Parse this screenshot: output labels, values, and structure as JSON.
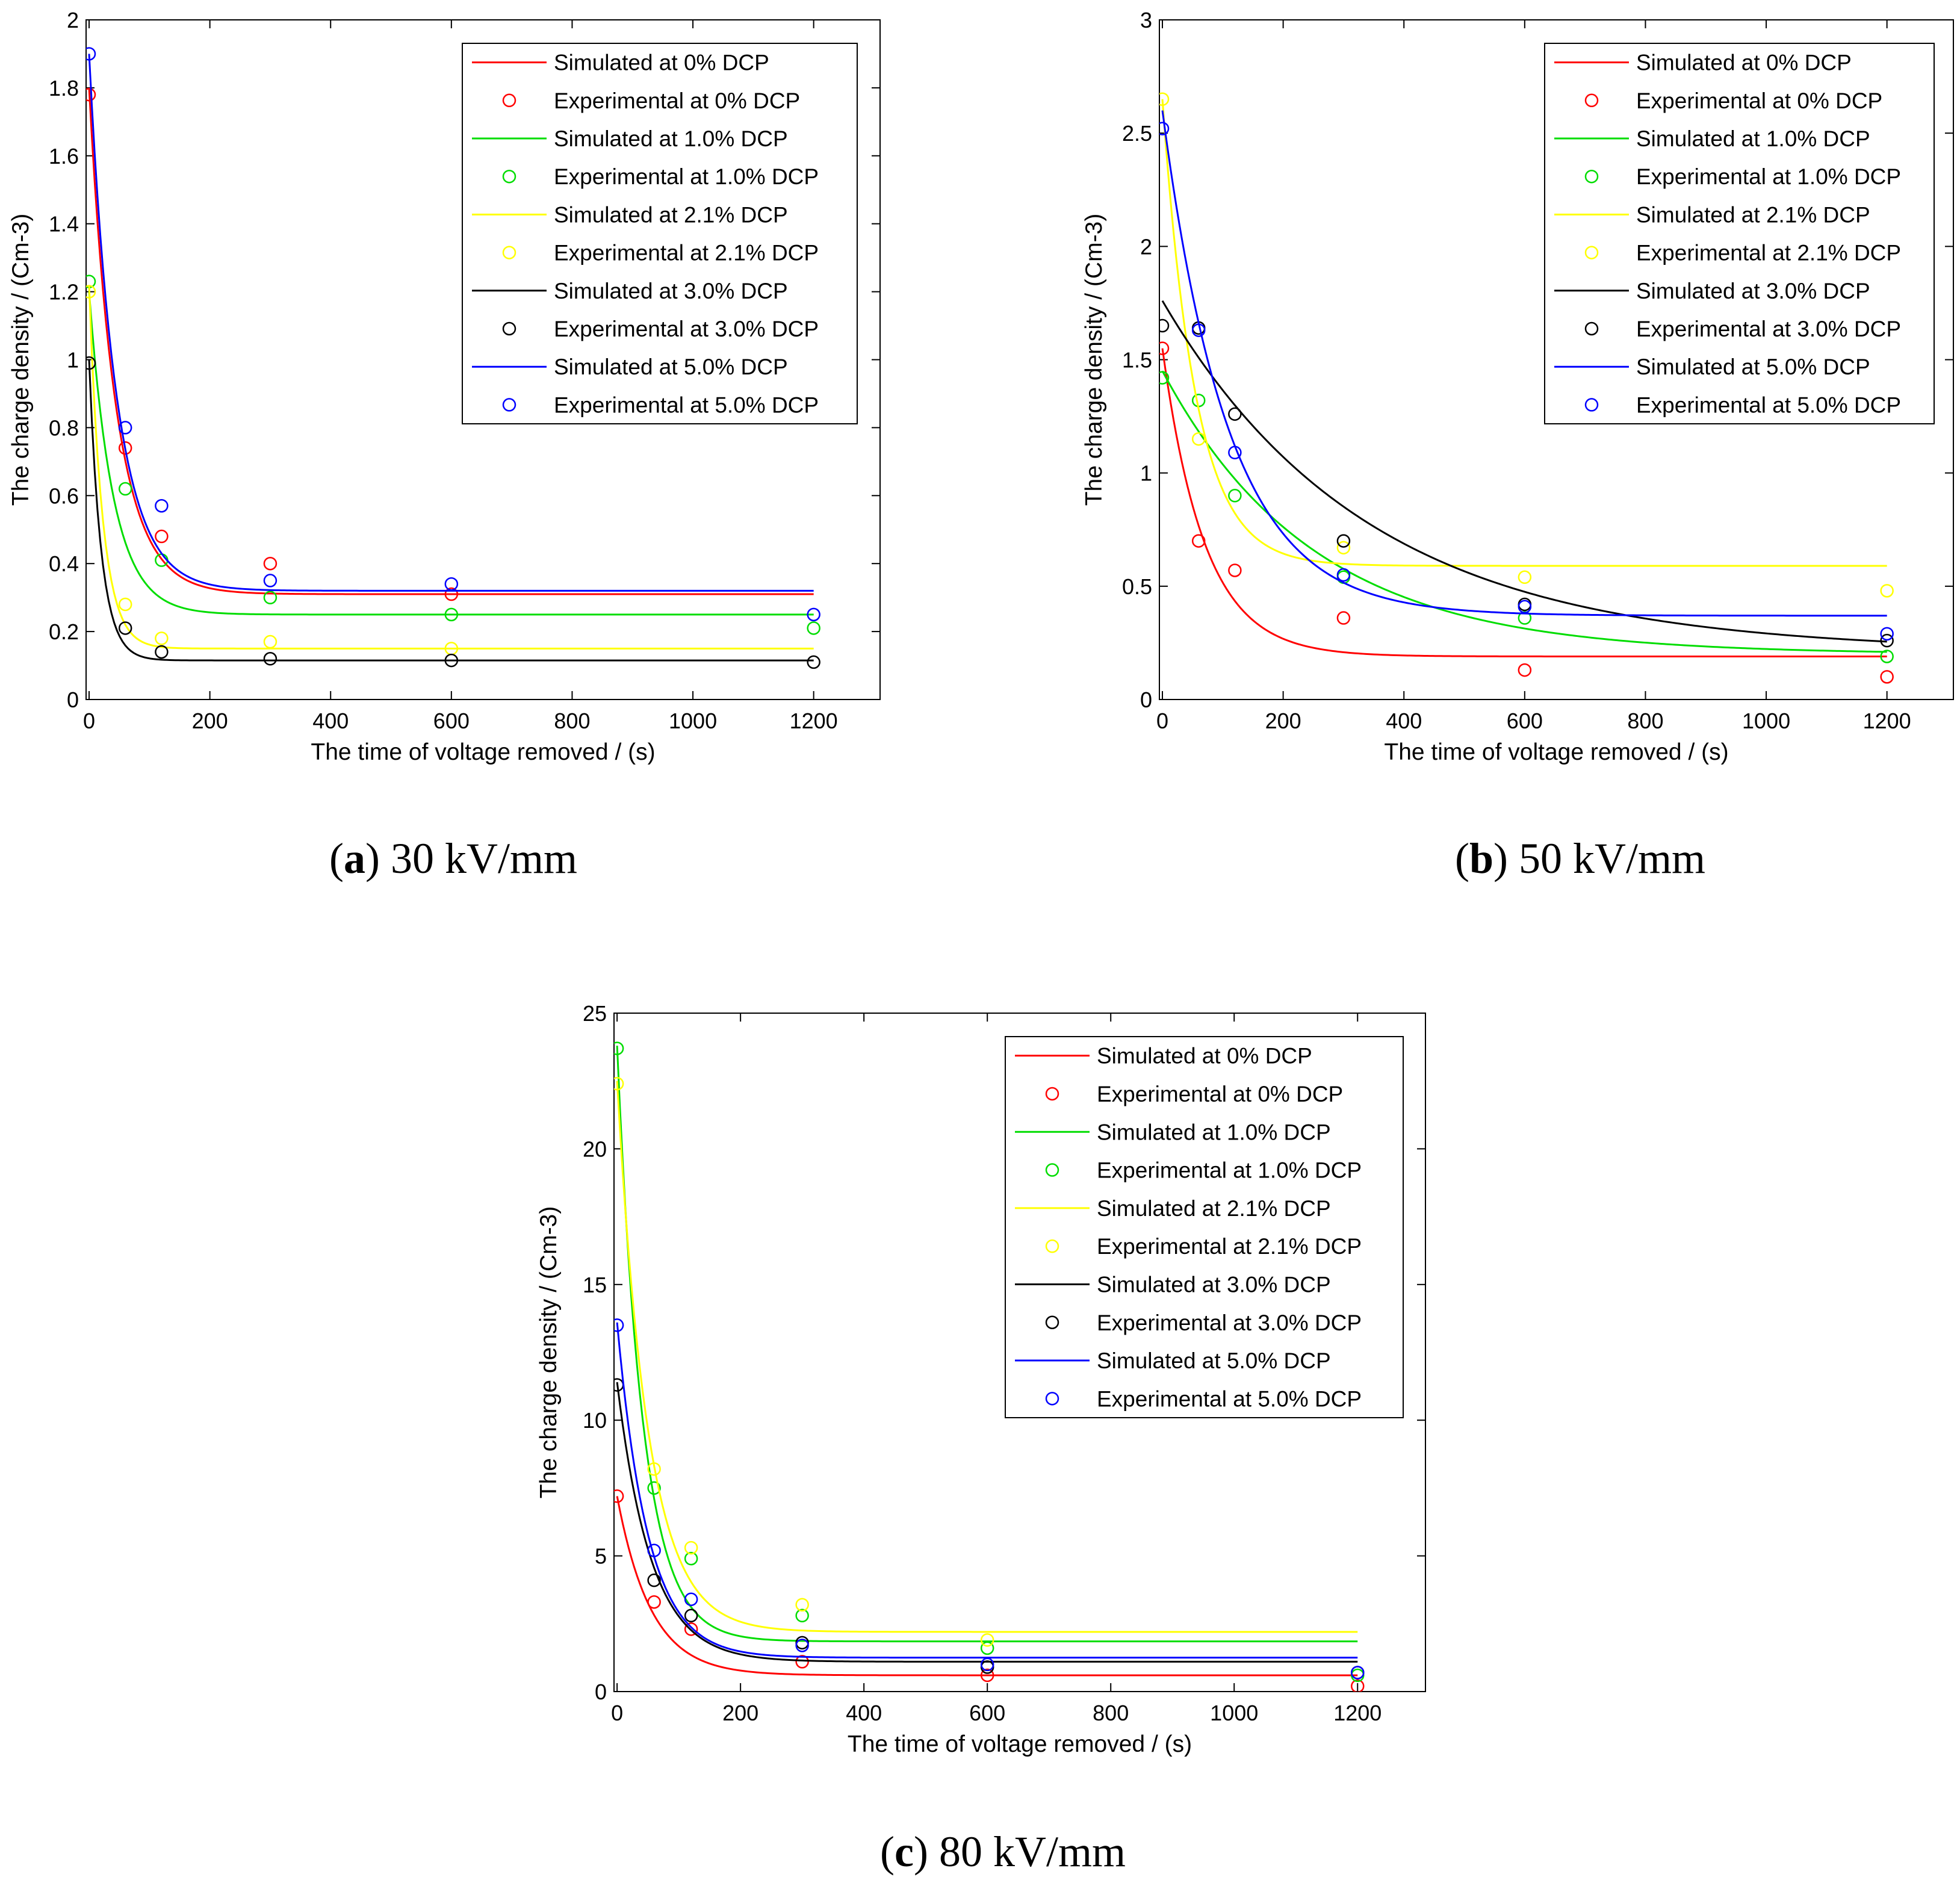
{
  "figure": {
    "series_meta": [
      {
        "key": "0",
        "color": "#ff0000",
        "sim_label": "Simulated at 0% DCP",
        "exp_label": "Experimental at 0% DCP"
      },
      {
        "key": "1.0",
        "color": "#00dd00",
        "sim_label": "Simulated at 1.0% DCP",
        "exp_label": "Experimental at 1.0% DCP"
      },
      {
        "key": "2.1",
        "color": "#ffff00",
        "sim_label": "Simulated at 2.1% DCP",
        "exp_label": "Experimental at 2.1% DCP"
      },
      {
        "key": "3.0",
        "color": "#000000",
        "sim_label": "Simulated at 3.0% DCP",
        "exp_label": "Experimental at 3.0% DCP"
      },
      {
        "key": "5.0",
        "color": "#0000ff",
        "sim_label": "Simulated at 5.0% DCP",
        "exp_label": "Experimental at 5.0% DCP"
      }
    ]
  },
  "chart_data": [
    {
      "id": "a",
      "type": "line",
      "caption_letter": "a",
      "caption_text": "30 kV/mm",
      "xlabel": "The time of voltage removed / (s)",
      "ylabel": "The charge density / (Cm-3)",
      "xlim": [
        -5,
        1310
      ],
      "ylim": [
        0,
        2
      ],
      "xticks": [
        0,
        200,
        400,
        600,
        800,
        1000,
        1200
      ],
      "yticks": [
        0,
        0.2,
        0.4,
        0.6,
        0.8,
        1,
        1.2,
        1.4,
        1.6,
        1.8,
        2
      ],
      "legend_position": "top-right",
      "experimental_x": [
        0,
        60,
        120,
        300,
        600,
        1200
      ],
      "series": [
        {
          "name": "0% DCP",
          "sim": {
            "y0": 1.8,
            "yinf": 0.31,
            "tau": 45
          },
          "exp": [
            1.78,
            0.74,
            0.48,
            0.4,
            0.31,
            null
          ]
        },
        {
          "name": "1.0% DCP",
          "sim": {
            "y0": 1.2,
            "yinf": 0.25,
            "tau": 40
          },
          "exp": [
            1.23,
            0.62,
            0.41,
            0.3,
            0.25,
            0.21
          ]
        },
        {
          "name": "2.1% DCP",
          "sim": {
            "y0": 1.22,
            "yinf": 0.15,
            "tau": 22
          },
          "exp": [
            1.2,
            0.28,
            0.18,
            0.17,
            0.15,
            null
          ]
        },
        {
          "name": "3.0% DCP",
          "sim": {
            "y0": 1.0,
            "yinf": 0.115,
            "tau": 20
          },
          "exp": [
            0.99,
            0.21,
            0.14,
            0.12,
            0.115,
            0.11
          ]
        },
        {
          "name": "5.0% DCP",
          "sim": {
            "y0": 1.9,
            "yinf": 0.32,
            "tau": 45
          },
          "exp": [
            1.9,
            0.8,
            0.57,
            0.35,
            0.34,
            0.25
          ]
        }
      ]
    },
    {
      "id": "b",
      "type": "line",
      "caption_letter": "b",
      "caption_text": "50 kV/mm",
      "xlabel": "The time of voltage removed / (s)",
      "ylabel": "The charge density / (Cm-3)",
      "xlim": [
        -5,
        1310
      ],
      "ylim": [
        0,
        3
      ],
      "xticks": [
        0,
        200,
        400,
        600,
        800,
        1000,
        1200
      ],
      "yticks": [
        0,
        0.5,
        1,
        1.5,
        2,
        2.5,
        3
      ],
      "legend_position": "top-right",
      "experimental_x": [
        0,
        60,
        120,
        300,
        600,
        1200
      ],
      "series": [
        {
          "name": "0% DCP",
          "sim": {
            "y0": 1.55,
            "yinf": 0.19,
            "tau": 70
          },
          "exp": [
            1.55,
            0.7,
            0.57,
            0.36,
            0.13,
            0.1
          ]
        },
        {
          "name": "1.0% DCP",
          "sim": {
            "y0": 1.45,
            "yinf": 0.2,
            "tau": 250
          },
          "exp": [
            1.42,
            1.32,
            0.9,
            0.54,
            0.36,
            0.19
          ]
        },
        {
          "name": "2.1% DCP",
          "sim": {
            "y0": 2.65,
            "yinf": 0.59,
            "tau": 55
          },
          "exp": [
            2.65,
            1.15,
            null,
            0.67,
            0.54,
            0.48
          ]
        },
        {
          "name": "3.0% DCP",
          "sim": {
            "y0": 1.76,
            "yinf": 0.21,
            "tau": 340
          },
          "exp": [
            1.65,
            1.64,
            1.26,
            0.7,
            0.42,
            0.26
          ]
        },
        {
          "name": "5.0% DCP",
          "sim": {
            "y0": 2.6,
            "yinf": 0.37,
            "tau": 110
          },
          "exp": [
            2.52,
            1.63,
            1.09,
            0.55,
            0.41,
            0.29
          ]
        }
      ]
    },
    {
      "id": "c",
      "type": "line",
      "caption_letter": "c",
      "caption_text": "80 kV/mm",
      "xlabel": "The time of voltage removed / (s)",
      "ylabel": "The charge density / (Cm-3)",
      "xlim": [
        -5,
        1310
      ],
      "ylim": [
        0,
        25
      ],
      "xticks": [
        0,
        200,
        400,
        600,
        800,
        1000,
        1200
      ],
      "yticks": [
        0,
        5,
        10,
        15,
        20,
        25
      ],
      "legend_position": "top-right",
      "experimental_x": [
        0,
        60,
        120,
        300,
        600,
        1200
      ],
      "series": [
        {
          "name": "0% DCP",
          "sim": {
            "y0": 7.2,
            "yinf": 0.6,
            "tau": 55
          },
          "exp": [
            7.2,
            3.3,
            2.3,
            1.1,
            0.6,
            0.2
          ]
        },
        {
          "name": "1.0% DCP",
          "sim": {
            "y0": 23.8,
            "yinf": 1.85,
            "tau": 42
          },
          "exp": [
            23.7,
            7.5,
            4.9,
            2.8,
            1.6,
            0.6
          ]
        },
        {
          "name": "2.1% DCP",
          "sim": {
            "y0": 22.5,
            "yinf": 2.2,
            "tau": 50
          },
          "exp": [
            22.4,
            8.2,
            5.3,
            3.2,
            1.9,
            null
          ]
        },
        {
          "name": "3.0% DCP",
          "sim": {
            "y0": 11.4,
            "yinf": 1.1,
            "tau": 55
          },
          "exp": [
            11.3,
            4.1,
            2.8,
            1.8,
            0.9,
            0.7
          ]
        },
        {
          "name": "5.0% DCP",
          "sim": {
            "y0": 13.6,
            "yinf": 1.25,
            "tau": 50
          },
          "exp": [
            13.5,
            5.2,
            3.4,
            1.7,
            1.0,
            0.7
          ]
        }
      ]
    }
  ]
}
